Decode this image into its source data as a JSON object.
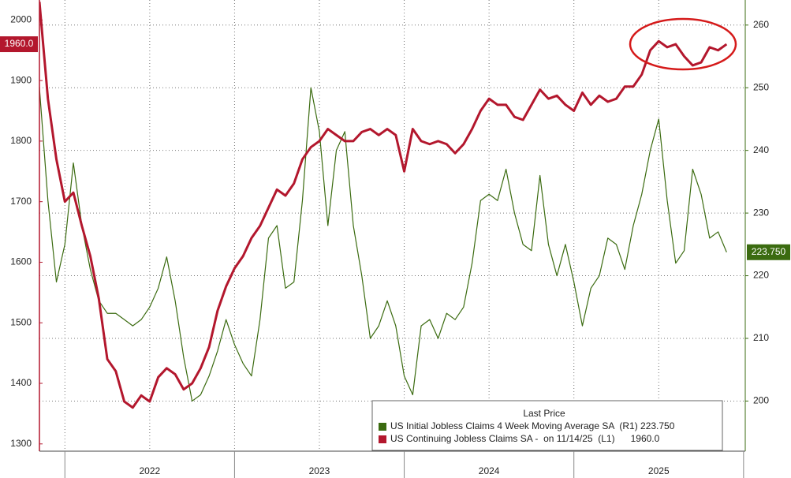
{
  "chart_data": {
    "type": "line",
    "x": [
      2021.85,
      2021.9,
      2021.95,
      2022.0,
      2022.05,
      2022.1,
      2022.15,
      2022.2,
      2022.25,
      2022.3,
      2022.35,
      2022.4,
      2022.45,
      2022.5,
      2022.55,
      2022.6,
      2022.65,
      2022.7,
      2022.75,
      2022.8,
      2022.85,
      2022.9,
      2022.95,
      2023.0,
      2023.05,
      2023.1,
      2023.15,
      2023.2,
      2023.25,
      2023.3,
      2023.35,
      2023.4,
      2023.45,
      2023.5,
      2023.55,
      2023.6,
      2023.65,
      2023.7,
      2023.75,
      2023.8,
      2023.85,
      2023.9,
      2023.95,
      2024.0,
      2024.05,
      2024.1,
      2024.15,
      2024.2,
      2024.25,
      2024.3,
      2024.35,
      2024.4,
      2024.45,
      2024.5,
      2024.55,
      2024.6,
      2024.65,
      2024.7,
      2024.75,
      2024.8,
      2024.85,
      2024.9,
      2024.95,
      2025.0,
      2025.05,
      2025.1,
      2025.15,
      2025.2,
      2025.25,
      2025.3,
      2025.35,
      2025.4,
      2025.45,
      2025.5,
      2025.55,
      2025.6,
      2025.65,
      2025.7,
      2025.75,
      2025.8,
      2025.85,
      2025.9
    ],
    "xlim": [
      2021.85,
      2026.01
    ],
    "xticks": [
      {
        "value": 2022.5,
        "label": "2022"
      },
      {
        "value": 2023.5,
        "label": "2023"
      },
      {
        "value": 2024.5,
        "label": "2024"
      },
      {
        "value": 2025.5,
        "label": "2025"
      }
    ],
    "ylim": [
      1288,
      2033
    ],
    "yticks": [
      1300,
      1400,
      1500,
      1600,
      1700,
      1800,
      1900,
      2000
    ],
    "y2lim": [
      192,
      264
    ],
    "y2ticks": [
      200,
      210,
      220,
      230,
      240,
      250,
      260
    ],
    "grid": true,
    "legend_title": "Last Price",
    "series": [
      {
        "name": "US Initial Jobless Claims 4 Week Moving Average SA  (R1) 223.750",
        "color": "#3b6b10",
        "axis": "y2",
        "last_label": "223.750",
        "values": [
          250,
          232,
          219,
          225,
          238,
          228,
          221,
          216,
          214,
          214,
          213,
          212,
          213,
          215,
          218,
          223,
          216,
          207,
          200,
          201,
          204,
          208,
          213,
          209,
          206,
          204,
          213,
          226,
          228,
          218,
          219,
          232,
          250,
          243,
          228,
          240,
          243,
          228,
          220,
          210,
          212,
          216,
          212,
          204,
          201,
          212,
          213,
          210,
          214,
          213,
          215,
          222,
          232,
          233,
          232,
          237,
          230,
          225,
          224,
          236,
          225,
          220,
          225,
          219,
          212,
          218,
          220,
          226,
          225,
          221,
          228,
          233,
          240,
          245,
          232,
          222,
          224,
          237,
          233,
          226,
          227,
          223.75
        ]
      },
      {
        "name": "US Continuing Jobless Claims SA -  on 11/14/25  (L1)      1960.0",
        "color": "#b3172d",
        "axis": "y",
        "last_label": "1960.0",
        "values": [
          2030,
          1870,
          1770,
          1700,
          1715,
          1660,
          1610,
          1540,
          1440,
          1420,
          1370,
          1360,
          1380,
          1370,
          1410,
          1425,
          1415,
          1390,
          1400,
          1425,
          1460,
          1520,
          1560,
          1590,
          1610,
          1640,
          1660,
          1690,
          1720,
          1710,
          1730,
          1770,
          1790,
          1800,
          1820,
          1810,
          1800,
          1800,
          1815,
          1820,
          1810,
          1820,
          1810,
          1750,
          1820,
          1800,
          1795,
          1800,
          1795,
          1780,
          1795,
          1820,
          1850,
          1870,
          1860,
          1860,
          1840,
          1835,
          1860,
          1885,
          1870,
          1875,
          1860,
          1850,
          1880,
          1860,
          1875,
          1865,
          1870,
          1890,
          1890,
          1910,
          1950,
          1965,
          1955,
          1960,
          1940,
          1925,
          1930,
          1955,
          1950,
          1960
        ]
      }
    ]
  }
}
